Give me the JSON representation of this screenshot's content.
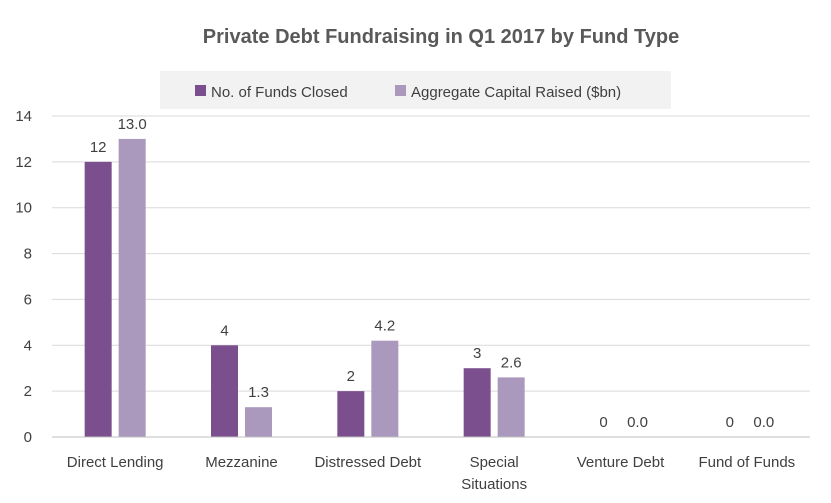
{
  "chart_data": {
    "type": "bar",
    "title": "Private Debt Fundraising in Q1 2017 by Fund Type",
    "xlabel": "",
    "ylabel": "",
    "ylim": [
      0,
      14
    ],
    "yticks": [
      0,
      2,
      4,
      6,
      8,
      10,
      12,
      14
    ],
    "grid": true,
    "legend_placement": "top",
    "categories": [
      [
        "Direct Lending"
      ],
      [
        "Mezzanine"
      ],
      [
        "Distressed Debt"
      ],
      [
        "Special",
        "Situations"
      ],
      [
        "Venture Debt"
      ],
      [
        "Fund of Funds"
      ]
    ],
    "series": [
      {
        "name": "No. of Funds Closed",
        "color": "#7b4f8e",
        "values": [
          12,
          4,
          2,
          3,
          0,
          0
        ],
        "labels": [
          "12",
          "4",
          "2",
          "3",
          "0",
          "0"
        ]
      },
      {
        "name": "Aggregate Capital Raised ($bn)",
        "color": "#ab98bd",
        "values": [
          13.0,
          1.3,
          4.2,
          2.6,
          0.0,
          0.0
        ],
        "labels": [
          "13.0",
          "1.3",
          "4.2",
          "2.6",
          "0.0",
          "0.0"
        ]
      }
    ]
  }
}
